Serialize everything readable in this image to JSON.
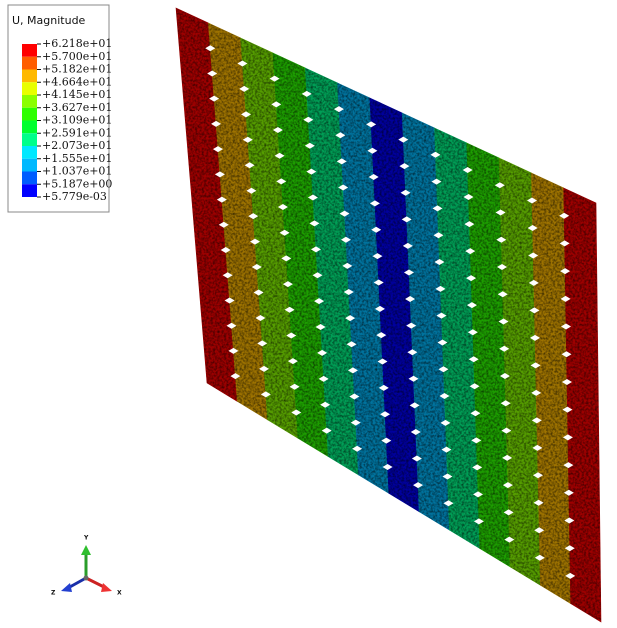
{
  "legend": {
    "title": "U, Magnitude",
    "labels": [
      "+6.218e+01",
      "+5.700e+01",
      "+5.182e+01",
      "+4.664e+01",
      "+4.145e+01",
      "+3.627e+01",
      "+3.109e+01",
      "+2.591e+01",
      "+2.073e+01",
      "+1.555e+01",
      "+1.037e+01",
      "+5.187e+00",
      "+5.779e-03"
    ],
    "colors": [
      "#ff0000",
      "#ff5d00",
      "#ffb900",
      "#e8ff00",
      "#8bff00",
      "#2eff00",
      "#00ff2e",
      "#00ff8b",
      "#00e8ff",
      "#00b9ff",
      "#005dff",
      "#0000ff"
    ]
  },
  "triad": {
    "y": "Y",
    "z": "Z",
    "x": "X"
  }
}
